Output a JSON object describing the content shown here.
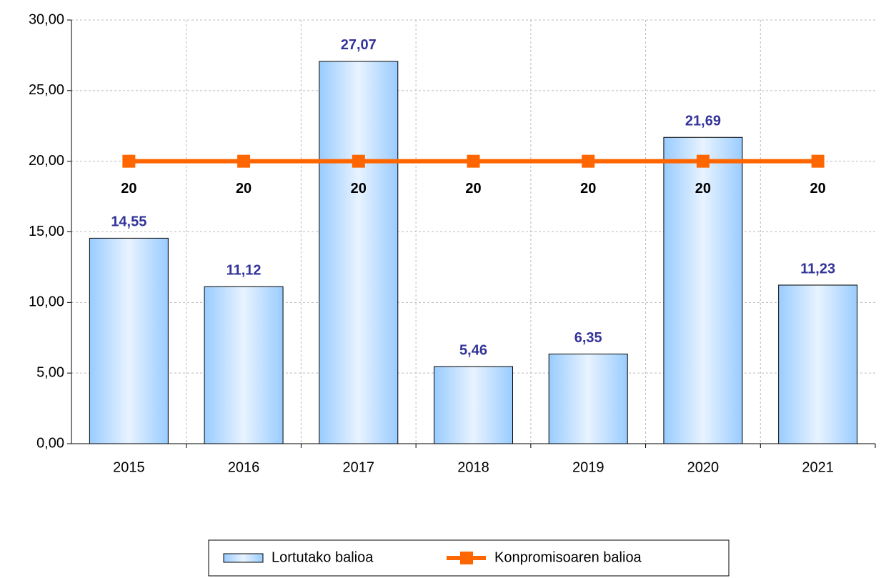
{
  "chart_data": {
    "type": "bar-line",
    "categories": [
      "2015",
      "2016",
      "2017",
      "2018",
      "2019",
      "2020",
      "2021"
    ],
    "series": [
      {
        "name": "Lortutako balioa",
        "type": "bar",
        "color": "#99ccff",
        "values": [
          14.55,
          11.12,
          27.07,
          5.46,
          6.35,
          21.69,
          11.23
        ],
        "value_labels": [
          "14,55",
          "11,12",
          "27,07",
          "5,46",
          "6,35",
          "21,69",
          "11,23"
        ]
      },
      {
        "name": "Konpromisoaren balioa",
        "type": "line",
        "color": "#ff6600",
        "values": [
          20,
          20,
          20,
          20,
          20,
          20,
          20
        ]
      }
    ],
    "ylim": [
      0,
      30
    ],
    "yticks": [
      {
        "value": 0,
        "label": "0,00"
      },
      {
        "value": 5,
        "label": "5,00"
      },
      {
        "value": 10,
        "label": "10,00"
      },
      {
        "value": 15,
        "label": "15,00"
      },
      {
        "value": 20,
        "label": "20,00"
      },
      {
        "value": 25,
        "label": "25,00"
      },
      {
        "value": 30,
        "label": "30,00"
      }
    ],
    "grid": true,
    "legend": "bottom"
  }
}
